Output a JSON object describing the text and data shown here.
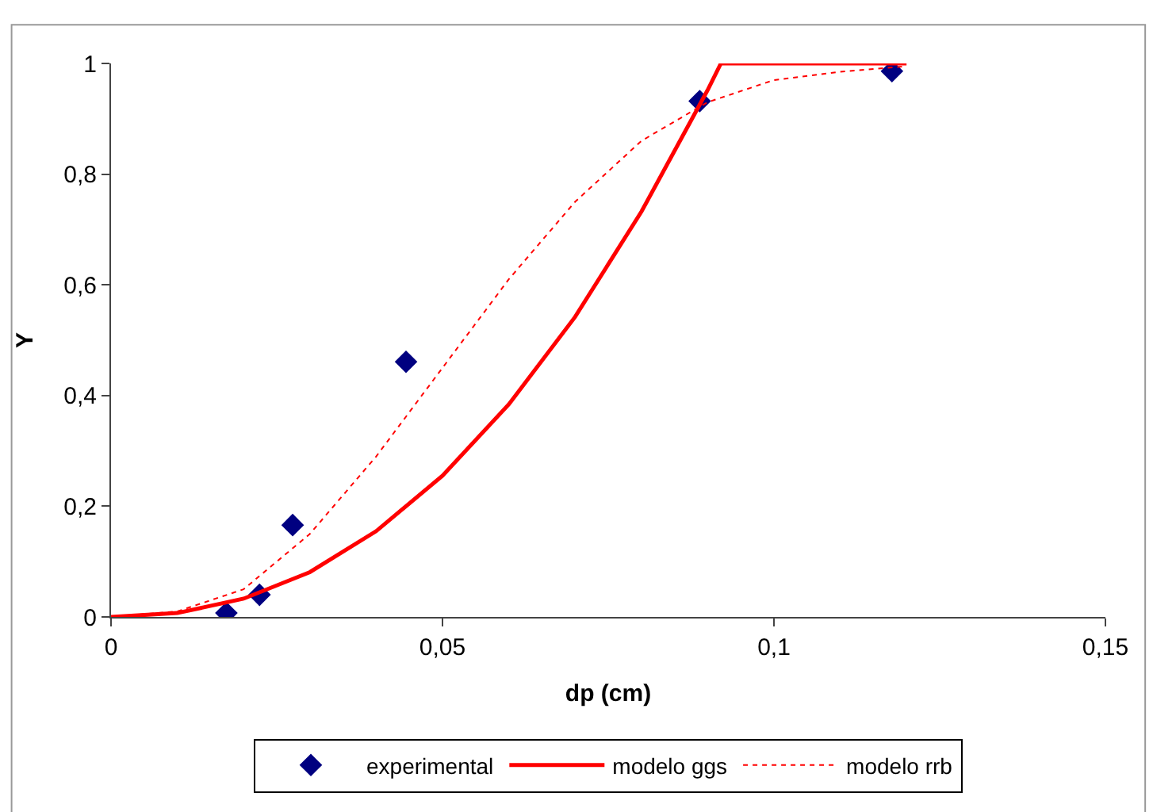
{
  "chart_data": {
    "type": "scatter",
    "xlabel": "dp (cm)",
    "ylabel": "Y",
    "xlim": [
      0,
      0.15
    ],
    "xticks": [
      {
        "value": 0,
        "label": "0"
      },
      {
        "value": 0.05,
        "label": "0,05"
      },
      {
        "value": 0.1,
        "label": "0,1"
      },
      {
        "value": 0.15,
        "label": "0,15"
      }
    ],
    "ylim": [
      0,
      1
    ],
    "yticks": [
      {
        "value": 0,
        "label": "0"
      },
      {
        "value": 0.2,
        "label": "0,2"
      },
      {
        "value": 0.4,
        "label": "0,4"
      },
      {
        "value": 0.6,
        "label": "0,6"
      },
      {
        "value": 0.8,
        "label": "0,8"
      },
      {
        "value": 1,
        "label": "1"
      }
    ],
    "grid": false,
    "legend": "bottom",
    "series": [
      {
        "name": "experimental",
        "marker": "diamond",
        "color": "#000080",
        "x": [
          0.0174,
          0.0224,
          0.0274,
          0.0445,
          0.0888,
          0.1178
        ],
        "values": [
          0.007,
          0.04,
          0.166,
          0.461,
          0.932,
          0.986
        ]
      },
      {
        "name": "modelo ggs",
        "type": "line",
        "line_style": "solid",
        "color": "#ff0000",
        "x": [
          0,
          0.01,
          0.02,
          0.03,
          0.04,
          0.05,
          0.06,
          0.07,
          0.08,
          0.09,
          0.092,
          0.12
        ],
        "values": [
          0,
          0.007,
          0.033,
          0.081,
          0.155,
          0.255,
          0.384,
          0.542,
          0.732,
          0.952,
          1,
          1
        ]
      },
      {
        "name": "modelo rrb",
        "type": "line",
        "line_style": "dotted",
        "color": "#ff0000",
        "x": [
          0,
          0.01,
          0.02,
          0.03,
          0.04,
          0.05,
          0.06,
          0.07,
          0.08,
          0.09,
          0.1,
          0.11,
          0.12
        ],
        "values": [
          0,
          0.01,
          0.05,
          0.15,
          0.29,
          0.45,
          0.61,
          0.75,
          0.86,
          0.93,
          0.97,
          0.985,
          0.995
        ]
      }
    ]
  }
}
